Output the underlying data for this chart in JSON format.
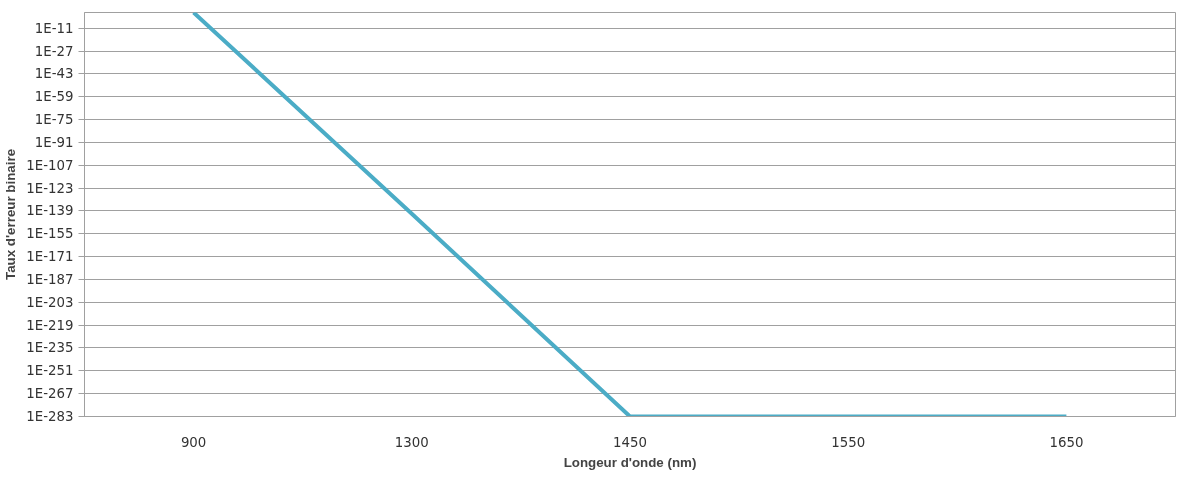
{
  "chart_data": {
    "type": "line",
    "xlabel": "Longeur d'onde (nm)",
    "ylabel": "Taux d'erreur binaire",
    "categories": [
      "900",
      "1300",
      "1450",
      "1550",
      "1650"
    ],
    "series": [
      {
        "color": "#4bacc6",
        "values": [
          1,
          1e-141,
          1e-283,
          1e-283,
          1e-283
        ]
      }
    ],
    "log": "y",
    "ylim": [
      1e-283,
      1
    ],
    "yticks": [
      {
        "value": 1e-11,
        "label": "1E-11"
      },
      {
        "value": 1e-27,
        "label": "1E-27"
      },
      {
        "value": 1e-43,
        "label": "1E-43"
      },
      {
        "value": 1e-59,
        "label": "1E-59"
      },
      {
        "value": 1e-75,
        "label": "1E-75"
      },
      {
        "value": 1e-91,
        "label": "1E-91"
      },
      {
        "value": 1e-107,
        "label": "1E-107"
      },
      {
        "value": 1e-123,
        "label": "1E-123"
      },
      {
        "value": 1e-139,
        "label": "1E-139"
      },
      {
        "value": 1e-155,
        "label": "1E-155"
      },
      {
        "value": 1e-171,
        "label": "1E-171"
      },
      {
        "value": 1e-187,
        "label": "1E-187"
      },
      {
        "value": 1e-203,
        "label": "1E-203"
      },
      {
        "value": 1e-219,
        "label": "1E-219"
      },
      {
        "value": 1e-235,
        "label": "1E-235"
      },
      {
        "value": 1e-251,
        "label": "1E-251"
      },
      {
        "value": 1e-267,
        "label": "1E-267"
      },
      {
        "value": 1e-283,
        "label": "1E-283"
      }
    ],
    "grid": "y",
    "marker": "none",
    "line_style": "solid"
  }
}
